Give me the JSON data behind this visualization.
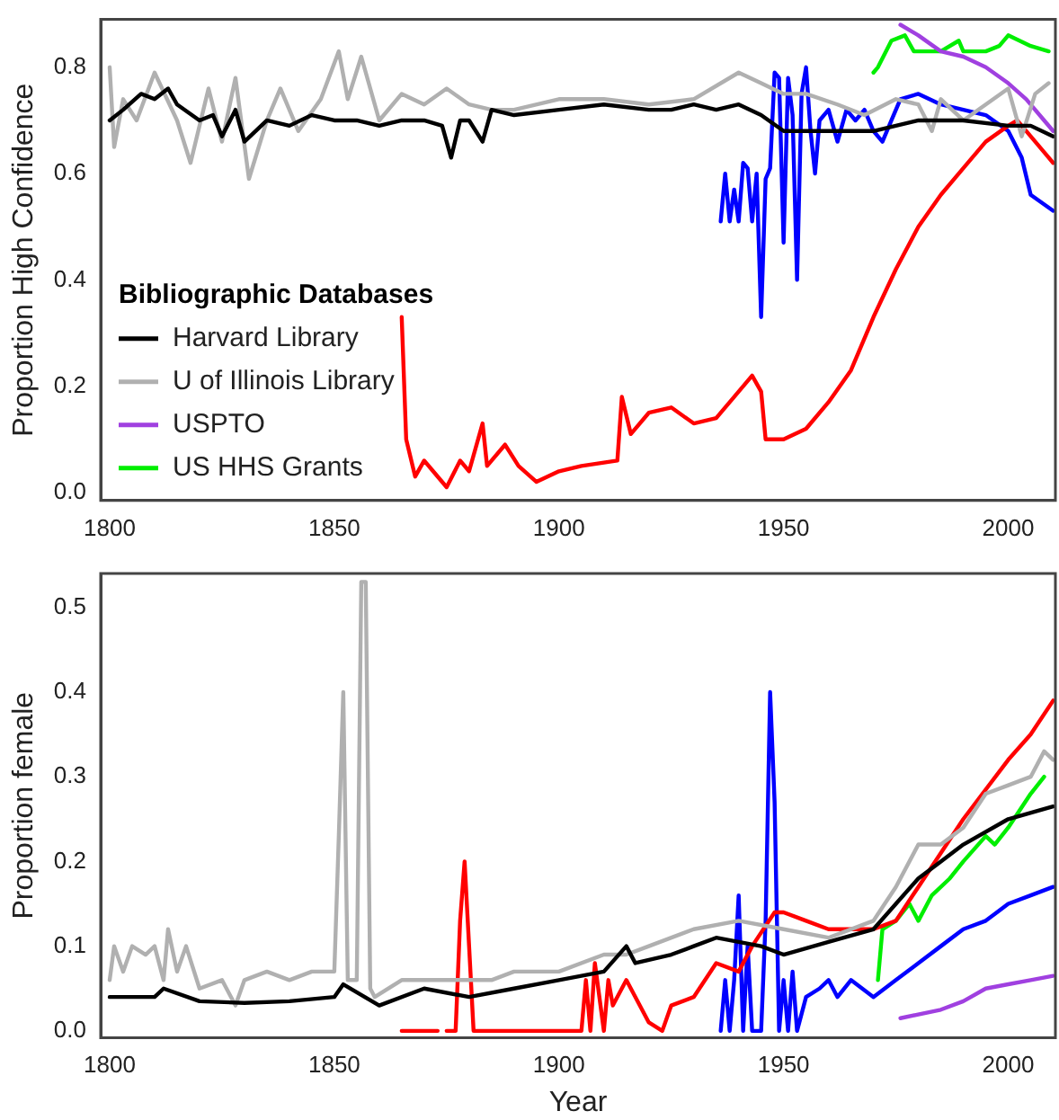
{
  "chart_data": [
    {
      "type": "line",
      "ylabel": "Proportion High Confidence",
      "legend_title": "Bibliographic Databases",
      "legend": "bottom left",
      "xlim": [
        1798,
        2010.5
      ],
      "xticks": [
        1800,
        1850,
        1900,
        1950,
        2000
      ],
      "ylim": [
        -0.015,
        0.89
      ],
      "yticks": [
        {
          "value": 0,
          "label": "0.0"
        },
        {
          "value": 0.2,
          "label": "0.2"
        },
        {
          "value": 0.4,
          "label": "0.4"
        },
        {
          "value": 0.6,
          "label": "0.6"
        },
        {
          "value": 0.8,
          "label": "0.8"
        }
      ],
      "series": [
        {
          "name": "Harvard Library",
          "color": "#000000",
          "x": [
            1800,
            1803,
            1807,
            1810,
            1813,
            1815,
            1820,
            1823,
            1825,
            1828,
            1830,
            1835,
            1840,
            1845,
            1850,
            1855,
            1860,
            1865,
            1870,
            1874,
            1876,
            1878,
            1880,
            1883,
            1885,
            1890,
            1900,
            1910,
            1920,
            1925,
            1930,
            1935,
            1940,
            1945,
            1950,
            1960,
            1970,
            1980,
            1990,
            2000,
            2005,
            2010
          ],
          "values": [
            0.7,
            0.72,
            0.75,
            0.74,
            0.76,
            0.73,
            0.7,
            0.71,
            0.67,
            0.72,
            0.66,
            0.7,
            0.69,
            0.71,
            0.7,
            0.7,
            0.69,
            0.7,
            0.7,
            0.69,
            0.63,
            0.7,
            0.7,
            0.66,
            0.72,
            0.71,
            0.72,
            0.73,
            0.72,
            0.72,
            0.73,
            0.72,
            0.73,
            0.71,
            0.68,
            0.68,
            0.68,
            0.7,
            0.7,
            0.69,
            0.69,
            0.67
          ]
        },
        {
          "name": "U of Illinois Library",
          "color": "#b0b0b0",
          "x": [
            1800,
            1801,
            1803,
            1806,
            1810,
            1815,
            1818,
            1822,
            1825,
            1828,
            1831,
            1835,
            1838,
            1842,
            1847,
            1851,
            1853,
            1856,
            1860,
            1865,
            1870,
            1875,
            1880,
            1885,
            1890,
            1900,
            1910,
            1920,
            1930,
            1940,
            1945,
            1950,
            1955,
            1962,
            1968,
            1975,
            1980,
            1983,
            1985,
            1990,
            1995,
            2000,
            2003,
            2006,
            2009
          ],
          "values": [
            0.8,
            0.65,
            0.74,
            0.7,
            0.79,
            0.7,
            0.62,
            0.76,
            0.66,
            0.78,
            0.59,
            0.7,
            0.76,
            0.68,
            0.74,
            0.83,
            0.74,
            0.82,
            0.7,
            0.75,
            0.73,
            0.76,
            0.73,
            0.72,
            0.72,
            0.74,
            0.74,
            0.73,
            0.74,
            0.79,
            0.77,
            0.75,
            0.75,
            0.73,
            0.71,
            0.74,
            0.73,
            0.68,
            0.74,
            0.7,
            0.73,
            0.76,
            0.67,
            0.75,
            0.77
          ]
        },
        {
          "color": "#ff0000",
          "x": [
            1865,
            1866,
            1868,
            1870,
            1872,
            1875,
            1878,
            1880,
            1883,
            1884,
            1888,
            1891,
            1895,
            1900,
            1905,
            1913,
            1914,
            1916,
            1920,
            1925,
            1930,
            1935,
            1940,
            1943,
            1945,
            1946,
            1950,
            1955,
            1960,
            1965,
            1970,
            1975,
            1980,
            1985,
            1990,
            1995,
            2000,
            2002,
            2005,
            2008,
            2010
          ],
          "values": [
            0.33,
            0.1,
            0.03,
            0.06,
            0.04,
            0.01,
            0.06,
            0.04,
            0.13,
            0.05,
            0.09,
            0.05,
            0.02,
            0.04,
            0.05,
            0.06,
            0.18,
            0.11,
            0.15,
            0.16,
            0.13,
            0.14,
            0.19,
            0.22,
            0.19,
            0.1,
            0.1,
            0.12,
            0.17,
            0.23,
            0.33,
            0.42,
            0.5,
            0.56,
            0.61,
            0.66,
            0.69,
            0.7,
            0.67,
            0.64,
            0.62
          ]
        },
        {
          "color": "#0000ff",
          "x": [
            1936,
            1937,
            1938,
            1939,
            1940,
            1941,
            1942,
            1943,
            1944,
            1945,
            1946,
            1947,
            1948,
            1949,
            1950,
            1951,
            1952,
            1953,
            1954,
            1955,
            1956,
            1957,
            1958,
            1960,
            1962,
            1964,
            1966,
            1968,
            1970,
            1972,
            1974,
            1976,
            1980,
            1985,
            1990,
            1995,
            2000,
            2003,
            2005,
            2010
          ],
          "values": [
            0.51,
            0.6,
            0.51,
            0.57,
            0.51,
            0.62,
            0.61,
            0.51,
            0.6,
            0.33,
            0.59,
            0.61,
            0.79,
            0.78,
            0.47,
            0.78,
            0.71,
            0.4,
            0.75,
            0.8,
            0.68,
            0.6,
            0.7,
            0.72,
            0.66,
            0.72,
            0.7,
            0.72,
            0.68,
            0.66,
            0.7,
            0.74,
            0.75,
            0.73,
            0.72,
            0.71,
            0.68,
            0.63,
            0.56,
            0.53
          ]
        },
        {
          "name": "USPTO",
          "color": "#a040e0",
          "x": [
            1976,
            1980,
            1985,
            1990,
            1995,
            2000,
            2004,
            2008,
            2010
          ],
          "values": [
            0.88,
            0.86,
            0.83,
            0.82,
            0.8,
            0.77,
            0.74,
            0.7,
            0.68
          ]
        },
        {
          "name": "US HHS Grants",
          "color": "#00ee00",
          "x": [
            1970,
            1971,
            1974,
            1977,
            1979,
            1985,
            1989,
            1990,
            1995,
            1998,
            2000,
            2005,
            2009
          ],
          "values": [
            0.79,
            0.8,
            0.85,
            0.86,
            0.83,
            0.83,
            0.85,
            0.83,
            0.83,
            0.84,
            0.86,
            0.84,
            0.83
          ]
        }
      ]
    },
    {
      "type": "line",
      "xlabel": "Year",
      "ylabel": "Proportion female",
      "xlim": [
        1798,
        2010.5
      ],
      "xticks": [
        1800,
        1850,
        1900,
        1950,
        2000
      ],
      "ylim": [
        -0.008,
        0.54
      ],
      "yticks": [
        {
          "value": 0,
          "label": "0.0"
        },
        {
          "value": 0.1,
          "label": "0.1"
        },
        {
          "value": 0.2,
          "label": "0.2"
        },
        {
          "value": 0.3,
          "label": "0.3"
        },
        {
          "value": 0.4,
          "label": "0.4"
        },
        {
          "value": 0.5,
          "label": "0.5"
        }
      ],
      "series": [
        {
          "color": "#000000",
          "x": [
            1800,
            1810,
            1812,
            1820,
            1830,
            1840,
            1850,
            1852,
            1860,
            1870,
            1880,
            1890,
            1900,
            1910,
            1915,
            1917,
            1925,
            1930,
            1935,
            1945,
            1950,
            1960,
            1970,
            1975,
            1980,
            1985,
            1990,
            2000,
            2010
          ],
          "values": [
            0.04,
            0.04,
            0.05,
            0.035,
            0.033,
            0.035,
            0.04,
            0.055,
            0.03,
            0.05,
            0.04,
            0.05,
            0.06,
            0.07,
            0.1,
            0.08,
            0.09,
            0.1,
            0.11,
            0.1,
            0.09,
            0.105,
            0.12,
            0.15,
            0.18,
            0.2,
            0.22,
            0.25,
            0.265
          ]
        },
        {
          "color": "#b0b0b0",
          "x": [
            1800,
            1801,
            1803,
            1805,
            1808,
            1810,
            1812,
            1813,
            1815,
            1817,
            1820,
            1825,
            1828,
            1830,
            1835,
            1840,
            1845,
            1850,
            1851,
            1852,
            1853,
            1855,
            1856,
            1857,
            1858,
            1859,
            1865,
            1875,
            1885,
            1890,
            1900,
            1910,
            1915,
            1920,
            1930,
            1940,
            1950,
            1960,
            1970,
            1975,
            1980,
            1985,
            1990,
            1995,
            2000,
            2005,
            2008,
            2010
          ],
          "values": [
            0.06,
            0.1,
            0.07,
            0.1,
            0.09,
            0.1,
            0.06,
            0.12,
            0.07,
            0.1,
            0.05,
            0.06,
            0.03,
            0.06,
            0.07,
            0.06,
            0.07,
            0.07,
            0.23,
            0.4,
            0.06,
            0.06,
            0.53,
            0.53,
            0.05,
            0.04,
            0.06,
            0.06,
            0.06,
            0.07,
            0.07,
            0.09,
            0.09,
            0.1,
            0.12,
            0.13,
            0.12,
            0.11,
            0.13,
            0.17,
            0.22,
            0.22,
            0.24,
            0.28,
            0.29,
            0.3,
            0.33,
            0.32
          ]
        },
        {
          "color": "#ff0000",
          "x": [
            1865,
            1873,
            1874,
            1875,
            1877,
            1878,
            1879,
            1880,
            1881,
            1905,
            1906,
            1907,
            1908,
            1910,
            1911,
            1912,
            1915,
            1920,
            1923,
            1925,
            1930,
            1935,
            1940,
            1943,
            1948,
            1950,
            1955,
            1960,
            1970,
            1975,
            1980,
            1990,
            2000,
            2005,
            2010
          ],
          "values": [
            0,
            0,
            null,
            0,
            0,
            0.13,
            0.2,
            0.1,
            0,
            0,
            0.06,
            0,
            0.08,
            0,
            0.06,
            0.03,
            0.06,
            0.01,
            0,
            0.03,
            0.04,
            0.08,
            0.07,
            0.1,
            0.14,
            0.14,
            0.13,
            0.12,
            0.12,
            0.13,
            0.17,
            0.25,
            0.32,
            0.35,
            0.39
          ]
        },
        {
          "color": "#0000ff",
          "x": [
            1936,
            1937,
            1938,
            1939,
            1940,
            1941,
            1942,
            1943,
            1945,
            1946,
            1947,
            1948,
            1949,
            1950,
            1951,
            1952,
            1953,
            1955,
            1958,
            1960,
            1962,
            1965,
            1970,
            1975,
            1980,
            1985,
            1990,
            1995,
            2000,
            2005,
            2010
          ],
          "values": [
            0,
            0.06,
            0,
            0.06,
            0.16,
            0,
            0.1,
            0,
            0,
            0.13,
            0.4,
            0.27,
            0,
            0.06,
            0,
            0.07,
            0,
            0.04,
            0.05,
            0.06,
            0.04,
            0.06,
            0.04,
            0.06,
            0.08,
            0.1,
            0.12,
            0.13,
            0.15,
            0.16,
            0.17
          ]
        },
        {
          "color": "#a040e0",
          "x": [
            1976,
            1985,
            1990,
            1995,
            2000,
            2005,
            2010
          ],
          "values": [
            0.015,
            0.025,
            0.035,
            0.05,
            0.055,
            0.06,
            0.065
          ]
        },
        {
          "color": "#00ee00",
          "x": [
            1971,
            1972,
            1975,
            1978,
            1980,
            1983,
            1987,
            1990,
            1995,
            1997,
            2000,
            2005,
            2008
          ],
          "values": [
            0.06,
            0.12,
            0.13,
            0.15,
            0.13,
            0.16,
            0.18,
            0.2,
            0.23,
            0.22,
            0.24,
            0.28,
            0.3
          ]
        }
      ]
    }
  ]
}
